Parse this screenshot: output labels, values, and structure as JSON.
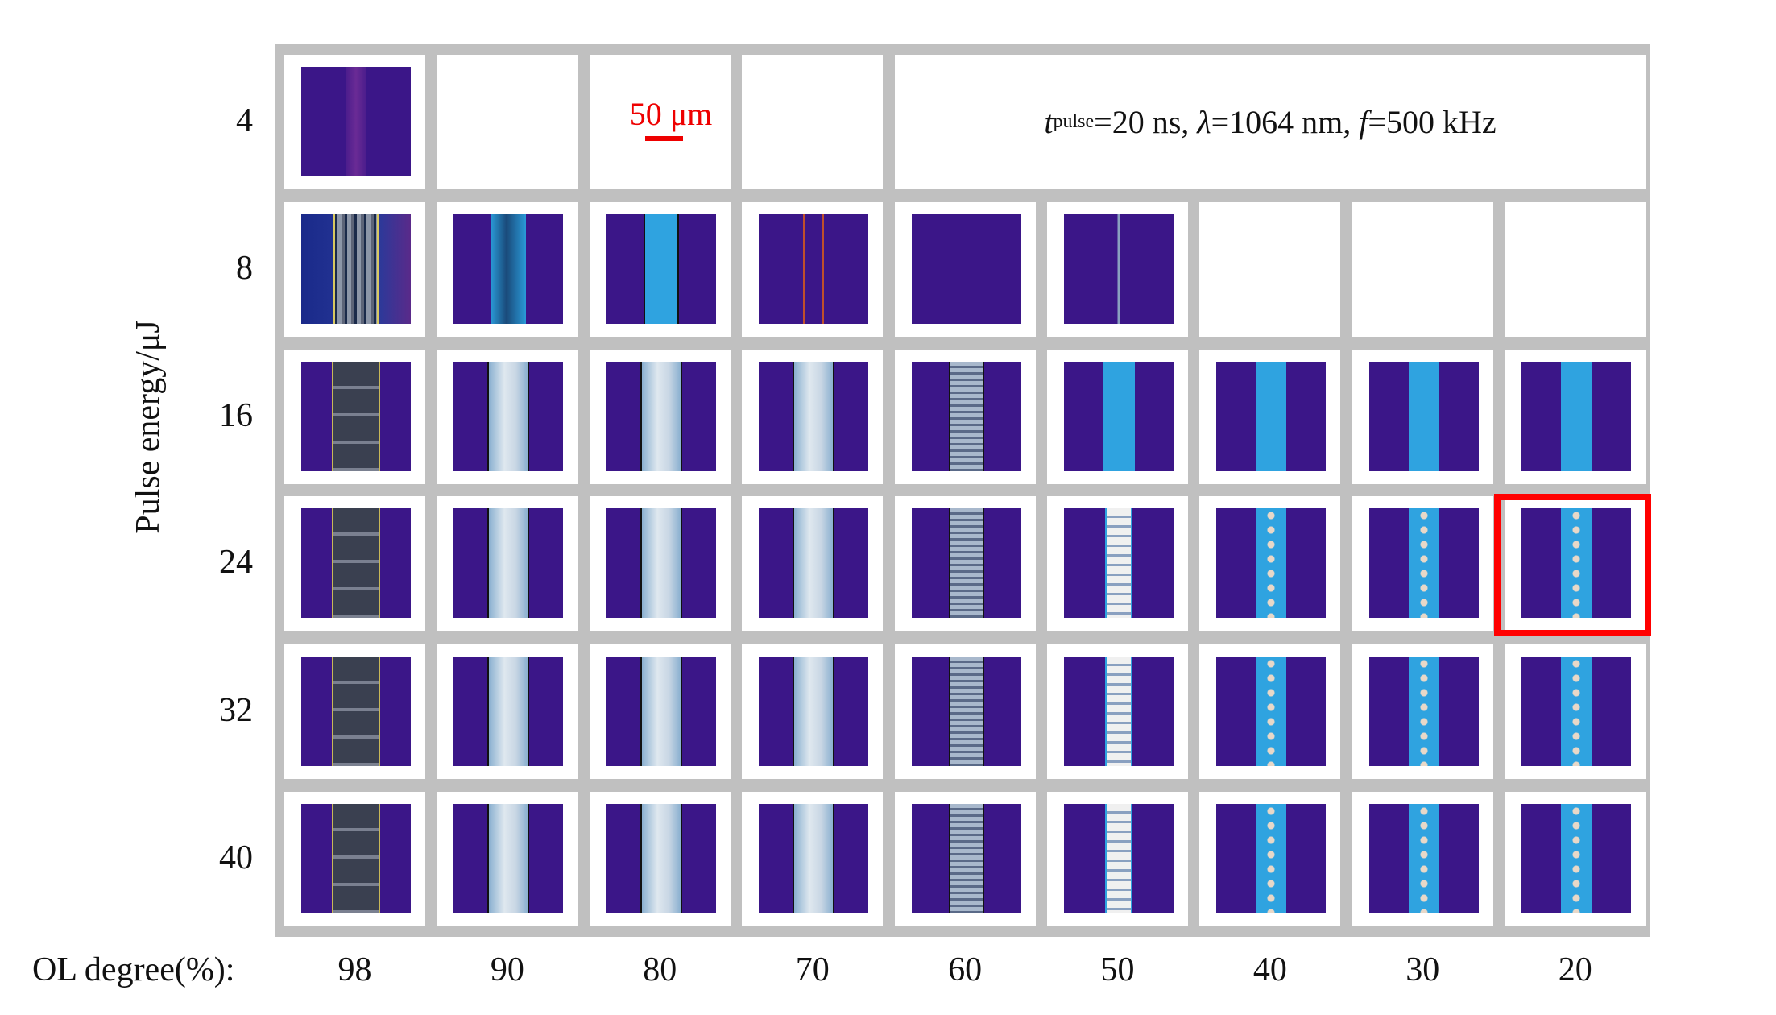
{
  "figure": {
    "y_axis_title": "Pulse energy/μJ",
    "x_axis_title": "OL degree(%):",
    "ol_degrees": [
      "98",
      "90",
      "80",
      "70",
      "60",
      "50",
      "40",
      "30",
      "20"
    ],
    "pulse_energies": [
      "4",
      "8",
      "16",
      "24",
      "32",
      "40"
    ],
    "scale_bar_label": "50 μm",
    "parameters": {
      "t_symbol": "t",
      "t_sub": "pulse",
      "t_value": "=20 ns, ",
      "lambda_symbol": "λ",
      "lambda_value": "=1064 nm, ",
      "f_symbol": "f",
      "f_value": "=500 kHz"
    },
    "images_per_row": [
      1,
      6,
      9,
      9,
      9,
      9
    ],
    "highlighted": {
      "pulse_energy": "24",
      "ol_degree": "20"
    },
    "colors": {
      "grid": "#c0c0c0",
      "highlight": "#ff0000",
      "scale_bar": "#ee0000",
      "substrate": "#3b1688"
    }
  }
}
